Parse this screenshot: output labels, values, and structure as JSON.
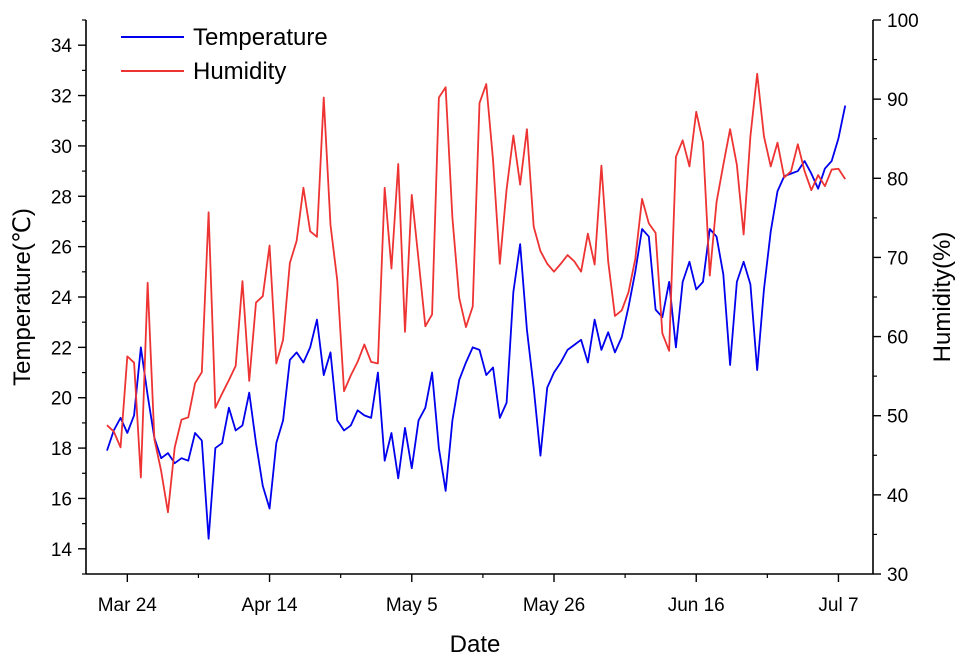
{
  "chart_data": {
    "type": "line",
    "xlabel": "Date",
    "ylabel_left": "Temperature(℃)",
    "ylabel_right": "Humidity(%)",
    "ylim_left": [
      13,
      35
    ],
    "ylim_right": [
      30,
      100
    ],
    "y_ticks_left": [
      14,
      16,
      18,
      20,
      22,
      24,
      26,
      28,
      30,
      32,
      34
    ],
    "y_ticks_right": [
      30,
      40,
      50,
      60,
      70,
      80,
      90,
      100
    ],
    "x_start_date": "Mar 21",
    "x_range_days": [
      0,
      110
    ],
    "x_ticks": [
      {
        "day": 3,
        "label": "Mar 24"
      },
      {
        "day": 24,
        "label": "Apr 14"
      },
      {
        "day": 45,
        "label": "May 5"
      },
      {
        "day": 66,
        "label": "May 26"
      },
      {
        "day": 87,
        "label": "Jun 16"
      },
      {
        "day": 108,
        "label": "Jul 7"
      }
    ],
    "series": [
      {
        "name": "Temperature",
        "axis": "left",
        "color": "#0000ee",
        "values": [
          17.9,
          18.7,
          19.2,
          18.6,
          19.3,
          22.0,
          20.1,
          18.4,
          17.6,
          17.8,
          17.4,
          17.6,
          17.5,
          18.6,
          18.3,
          14.4,
          18.0,
          18.2,
          19.6,
          18.7,
          18.9,
          20.2,
          18.2,
          16.5,
          15.6,
          18.2,
          19.1,
          21.5,
          21.8,
          21.4,
          22.0,
          23.1,
          20.9,
          21.8,
          19.1,
          18.7,
          18.9,
          19.5,
          19.3,
          19.2,
          21.0,
          17.5,
          18.6,
          16.8,
          18.8,
          17.2,
          19.1,
          19.6,
          21.0,
          18.0,
          16.3,
          19.1,
          20.7,
          21.4,
          22.0,
          21.9,
          20.9,
          21.2,
          19.2,
          19.8,
          24.2,
          26.1,
          22.7,
          20.4,
          17.7,
          20.4,
          21.0,
          21.4,
          21.9,
          22.1,
          22.3,
          21.4,
          23.1,
          21.9,
          22.6,
          21.8,
          22.4,
          23.6,
          25.0,
          26.7,
          26.4,
          23.5,
          23.2,
          24.6,
          22.0,
          24.6,
          25.4,
          24.3,
          24.6,
          26.7,
          26.4,
          24.9,
          21.3,
          24.6,
          25.4,
          24.5,
          21.1,
          24.3,
          26.6,
          28.2,
          28.8,
          28.9,
          29.0,
          29.4,
          28.9,
          28.3,
          29.1,
          29.4,
          30.3,
          31.6
        ]
      },
      {
        "name": "Humidity",
        "axis": "right",
        "color": "#ee3333",
        "values": [
          48.8,
          48.0,
          46.0,
          57.5,
          56.7,
          42.2,
          66.8,
          47.0,
          43.0,
          37.8,
          46.0,
          49.5,
          49.8,
          54.1,
          55.5,
          75.7,
          51.0,
          52.8,
          54.5,
          56.3,
          67.0,
          54.4,
          64.3,
          65.1,
          71.5,
          56.6,
          59.6,
          69.3,
          72.1,
          78.8,
          73.3,
          72.6,
          90.2,
          74.1,
          67.1,
          53.1,
          55.1,
          56.8,
          59.0,
          56.8,
          56.6,
          78.8,
          68.6,
          81.8,
          60.6,
          77.9,
          69.7,
          61.3,
          62.8,
          90.2,
          91.5,
          75.0,
          64.9,
          61.2,
          63.8,
          89.5,
          91.9,
          82.3,
          69.2,
          78.6,
          85.4,
          79.2,
          86.2,
          73.9,
          70.8,
          69.2,
          68.2,
          69.2,
          70.3,
          69.5,
          68.2,
          73.0,
          69.1,
          81.6,
          69.5,
          62.6,
          63.3,
          65.6,
          69.8,
          77.4,
          74.3,
          73.1,
          60.4,
          58.2,
          82.7,
          84.8,
          81.5,
          88.4,
          84.5,
          67.7,
          77.0,
          81.7,
          86.2,
          81.7,
          72.9,
          85.3,
          93.2,
          85.3,
          81.5,
          84.5,
          80.1,
          80.9,
          84.3,
          80.9,
          78.5,
          80.4,
          79.0,
          81.1,
          81.2,
          79.9
        ]
      }
    ]
  }
}
